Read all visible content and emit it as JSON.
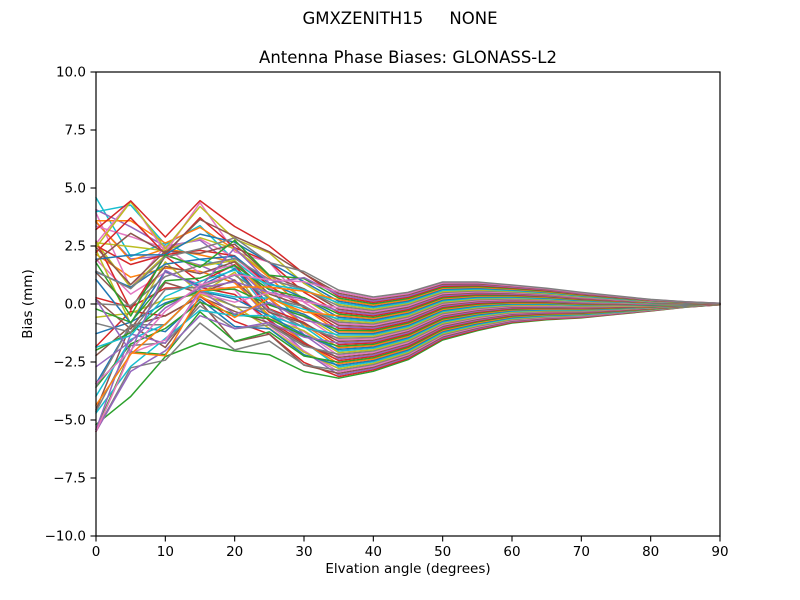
{
  "titles": {
    "suptitle": "GMXZENITH15     NONE",
    "plot_title": "Antenna Phase Biases: GLONASS-L2"
  },
  "axes": {
    "xlabel": "Elvation angle (degrees)",
    "ylabel": "Bias (mm)",
    "xlim": [
      0,
      90
    ],
    "ylim": [
      -10.0,
      10.0
    ],
    "xticks": [
      0,
      10,
      20,
      30,
      40,
      50,
      60,
      70,
      80,
      90
    ],
    "yticks": [
      10.0,
      7.5,
      5.0,
      2.5,
      0.0,
      -2.5,
      -5.0,
      -7.5,
      -10.0
    ],
    "grid": false,
    "legend": "none",
    "background": "#ffffff",
    "spine_color": "#000000"
  },
  "chart_data": {
    "type": "line",
    "title": "Antenna Phase Biases: GLONASS-L2",
    "xlabel": "Elvation angle (degrees)",
    "ylabel": "Bias (mm)",
    "xlim": [
      0,
      90
    ],
    "ylim": [
      -10.0,
      10.0
    ],
    "x": [
      0,
      5,
      10,
      15,
      20,
      25,
      30,
      35,
      40,
      45,
      50,
      55,
      60,
      65,
      70,
      75,
      80,
      85,
      90
    ],
    "envelope_top": [
      4.6,
      4.2,
      3.6,
      3.95,
      3.5,
      2.3,
      1.7,
      0.6,
      0.35,
      0.5,
      1.0,
      1.0,
      0.85,
      0.7,
      0.5,
      0.35,
      0.2,
      0.1,
      0.03
    ],
    "envelope_bottom": [
      -5.2,
      -4.0,
      -2.2,
      -1.0,
      -1.3,
      -1.9,
      -2.85,
      -3.2,
      -2.9,
      -2.4,
      -1.5,
      -1.2,
      -0.8,
      -0.65,
      -0.6,
      -0.45,
      -0.3,
      -0.15,
      -0.03
    ],
    "series_count": 56,
    "series_generator": {
      "description": "56 unlabeled bias curves; y(x)=base+halfwidth*m, m=(1-t)*v+t*u+amp*sin(osc_freq*x+phase)*(1-t), u=-1+2i/55, v=-1+2*v_order[i]/55, clamp m to +/-1.06",
      "base": [
        -0.3,
        0.1,
        0.7,
        1.3,
        1.0,
        0.2,
        -0.6,
        -1.3,
        -1.3,
        -0.95,
        -0.3,
        -0.1,
        0.0,
        0.0,
        -0.05,
        -0.05,
        -0.05,
        -0.02,
        0.0
      ],
      "halfwidth": [
        4.9,
        4.1,
        2.95,
        3.0,
        3.0,
        2.4,
        2.3,
        1.9,
        1.6,
        1.45,
        1.25,
        1.05,
        0.82,
        0.68,
        0.55,
        0.4,
        0.25,
        0.12,
        0.03
      ],
      "transition": [
        0,
        0.08,
        0.18,
        0.3,
        0.45,
        0.62,
        0.82,
        1,
        1,
        1,
        1,
        1,
        1,
        1,
        1,
        1,
        1,
        1,
        1
      ],
      "v_order": [
        0,
        23,
        46,
        13,
        36,
        3,
        26,
        49,
        16,
        39,
        6,
        29,
        52,
        19,
        42,
        9,
        32,
        55,
        22,
        45,
        12,
        35,
        2,
        25,
        48,
        15,
        38,
        5,
        28,
        51,
        18,
        41,
        8,
        31,
        54,
        21,
        44,
        11,
        34,
        1,
        24,
        47,
        14,
        37,
        4,
        27,
        50,
        17,
        40,
        7,
        30,
        53,
        20,
        43,
        10,
        33
      ],
      "amp_pattern": [
        0,
        5,
        1,
        6,
        2,
        7,
        3,
        8,
        4
      ],
      "amp_base": 0.08,
      "amp_scale": 0.35,
      "phase_pattern": [
        0,
        7,
        2,
        9,
        4,
        11,
        6,
        1,
        8,
        3,
        10,
        5
      ],
      "phase_step": 0.5236,
      "osc_freq": 0.62,
      "clamp": 1.06
    },
    "colors": [
      "#1f77b4",
      "#ff7f0e",
      "#2ca02c",
      "#d62728",
      "#9467bd",
      "#8c564b",
      "#e377c2",
      "#7f7f7f",
      "#bcbd22",
      "#17becf"
    ],
    "color_offset": 2,
    "line_width": 1.5
  }
}
